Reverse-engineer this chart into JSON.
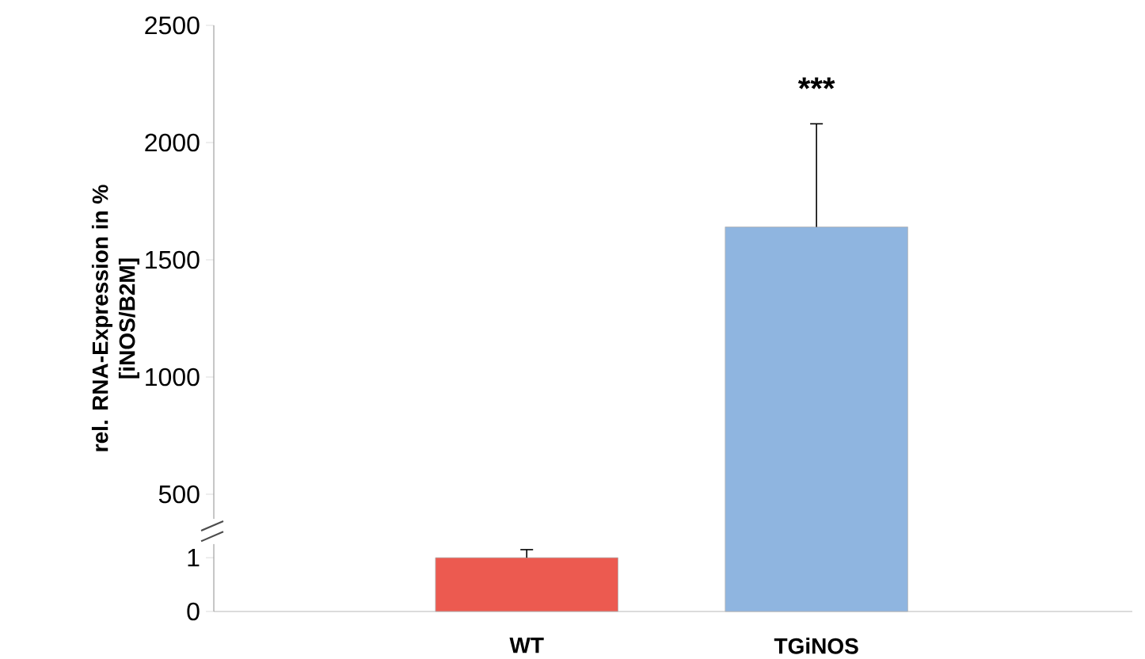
{
  "chart_data": {
    "type": "bar",
    "ylabel": "rel. RNA-Expression in % [iNOS/B2M]",
    "categories": [
      "WT",
      "TGiNOS"
    ],
    "series": [
      {
        "color": "#ec5a50",
        "values": [
          1,
          null
        ],
        "errors": [
          [
            1,
            1.15
          ],
          null
        ],
        "axis": "y2"
      },
      {
        "color": "#8fb5e0",
        "values": [
          null,
          1640
        ],
        "errors": [
          null,
          [
            1640,
            2080
          ]
        ]
      }
    ],
    "ylim": [
      0,
      2500
    ],
    "yticks": [
      500,
      1000,
      1500,
      2000,
      2500
    ],
    "y2lim": [
      0,
      10.9
    ],
    "y2ticks": [
      0,
      1
    ],
    "annotations": [
      "***"
    ]
  }
}
